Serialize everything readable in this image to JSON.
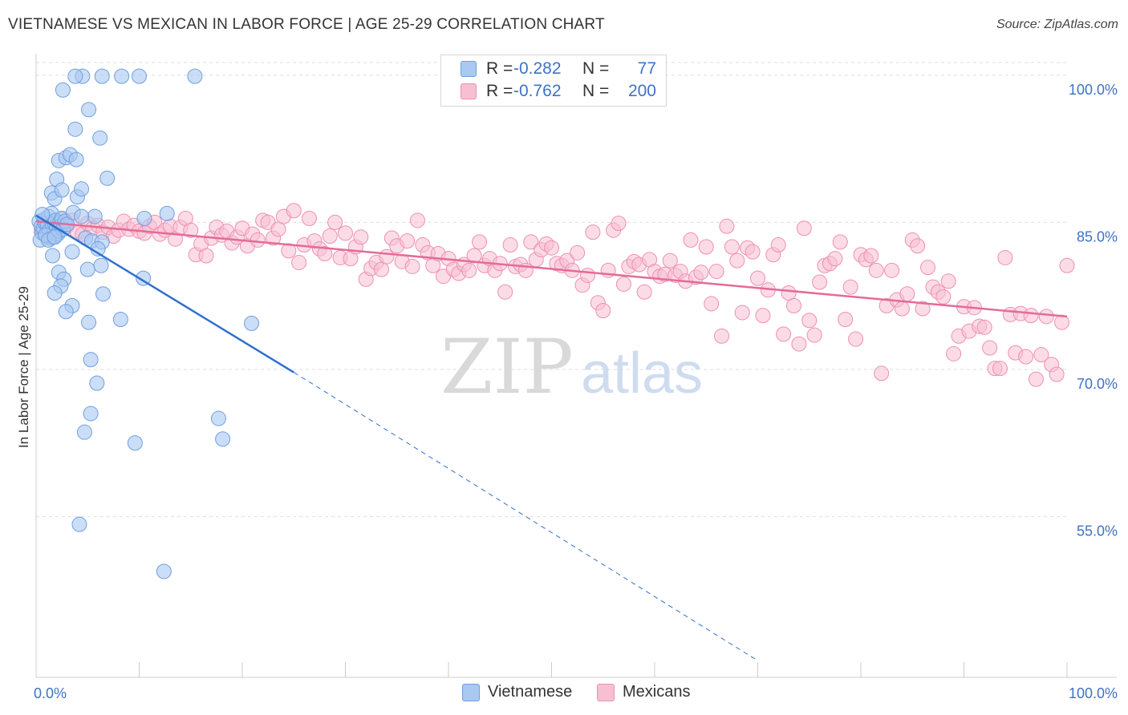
{
  "title": "VIETNAMESE VS MEXICAN IN LABOR FORCE | AGE 25-29 CORRELATION CHART",
  "source": "Source: ZipAtlas.com",
  "watermark": {
    "zip": "ZIP",
    "atlas": "atlas"
  },
  "legend": [
    {
      "r_label": "R =",
      "r_value": "-0.282",
      "n_label": "N =",
      "n_value": "77"
    },
    {
      "r_label": "R =",
      "r_value": "-0.762",
      "n_label": "N =",
      "n_value": "200"
    }
  ],
  "bottom_legend": {
    "vietnamese": "Vietnamese",
    "mexicans": "Mexicans"
  },
  "colors": {
    "viet_fill": "#a9c8f2",
    "viet_stroke": "#6f9fdf",
    "viet_line": "#2f6fd0",
    "mex_fill": "#f7bfd2",
    "mex_stroke": "#ef8fb1",
    "mex_line": "#e46b98",
    "axis_label": "#3f72c4",
    "grid": "#dddddd"
  },
  "chart_data": {
    "type": "scatter",
    "ylabel": "In Labor Force | Age 25-29",
    "xlim": [
      0,
      100
    ],
    "ylim": [
      38.6,
      102.2
    ],
    "x_tick_labels": [
      "0.0%",
      "100.0%"
    ],
    "y_ticks": [
      {
        "value": 100,
        "label": "100.0%"
      },
      {
        "value": 85,
        "label": "85.0%"
      },
      {
        "value": 70,
        "label": "70.0%"
      },
      {
        "value": 55,
        "label": "55.0%"
      }
    ],
    "grid": true,
    "series": [
      {
        "name": "Vietnamese",
        "trend": {
          "x0": 0,
          "y0": 85.7,
          "x1": 25,
          "y1": 69.7,
          "dash_x1": 70,
          "dash_y1": 40.3
        },
        "points": [
          [
            0.3,
            85.1
          ],
          [
            0.5,
            84.6
          ],
          [
            0.6,
            83.9
          ],
          [
            0.7,
            84.4
          ],
          [
            0.8,
            85.3
          ],
          [
            0.9,
            84.9
          ],
          [
            1.0,
            83.6
          ],
          [
            1.1,
            84.8
          ],
          [
            1.2,
            85.6
          ],
          [
            1.3,
            84.2
          ],
          [
            1.4,
            83.4
          ],
          [
            1.5,
            85.9
          ],
          [
            1.6,
            84.7
          ],
          [
            1.7,
            83.5
          ],
          [
            1.8,
            84.9
          ],
          [
            1.9,
            85.2
          ],
          [
            2.0,
            84.4
          ],
          [
            2.1,
            83.8
          ],
          [
            2.2,
            84.1
          ],
          [
            2.3,
            85.0
          ],
          [
            2.4,
            84.6
          ],
          [
            2.5,
            85.4
          ],
          [
            2.6,
            84.3
          ],
          [
            2.8,
            85.1
          ],
          [
            3.0,
            84.8
          ],
          [
            0.4,
            83.2
          ],
          [
            0.6,
            85.8
          ],
          [
            0.9,
            83.7
          ],
          [
            1.2,
            83.2
          ],
          [
            1.8,
            83.5
          ],
          [
            1.5,
            88.0
          ],
          [
            1.8,
            87.4
          ],
          [
            2.0,
            89.4
          ],
          [
            2.2,
            91.3
          ],
          [
            2.5,
            88.3
          ],
          [
            2.9,
            91.6
          ],
          [
            3.3,
            91.9
          ],
          [
            3.8,
            94.5
          ],
          [
            3.6,
            86.0
          ],
          [
            4.0,
            87.6
          ],
          [
            4.4,
            88.4
          ],
          [
            3.9,
            91.4
          ],
          [
            4.5,
            99.9
          ],
          [
            3.8,
            99.9
          ],
          [
            2.6,
            98.5
          ],
          [
            5.1,
            96.5
          ],
          [
            6.2,
            93.6
          ],
          [
            6.4,
            99.9
          ],
          [
            8.3,
            99.9
          ],
          [
            10.0,
            99.9
          ],
          [
            15.4,
            99.9
          ],
          [
            6.9,
            89.5
          ],
          [
            5.7,
            85.6
          ],
          [
            4.4,
            85.6
          ],
          [
            4.8,
            83.4
          ],
          [
            5.4,
            83.1
          ],
          [
            6.4,
            83.0
          ],
          [
            6.0,
            82.3
          ],
          [
            3.5,
            82.0
          ],
          [
            1.6,
            81.6
          ],
          [
            6.3,
            80.6
          ],
          [
            5.0,
            80.2
          ],
          [
            2.2,
            79.9
          ],
          [
            2.7,
            79.2
          ],
          [
            2.4,
            78.5
          ],
          [
            1.8,
            77.8
          ],
          [
            6.5,
            77.7
          ],
          [
            3.5,
            76.5
          ],
          [
            2.9,
            75.9
          ],
          [
            8.2,
            75.1
          ],
          [
            5.1,
            74.8
          ],
          [
            20.9,
            74.7
          ],
          [
            10.4,
            79.3
          ],
          [
            5.3,
            71.0
          ],
          [
            5.9,
            68.6
          ],
          [
            5.3,
            65.5
          ],
          [
            17.7,
            65.0
          ]
        ],
        "extra_points": [
          [
            4.7,
            63.6
          ],
          [
            9.6,
            62.5
          ],
          [
            18.1,
            62.9
          ],
          [
            4.2,
            54.2
          ],
          [
            12.4,
            49.4
          ],
          [
            10.5,
            85.4
          ],
          [
            12.7,
            85.9
          ]
        ]
      },
      {
        "name": "Mexicans",
        "trend": {
          "x0": 0,
          "y0": 85.1,
          "x1": 100,
          "y1": 75.4
        },
        "points": [
          [
            0.5,
            84.1
          ],
          [
            1.0,
            85.0
          ],
          [
            1.5,
            84.6
          ],
          [
            2.0,
            84.2
          ],
          [
            2.5,
            85.3
          ],
          [
            3.0,
            84.6
          ],
          [
            3.5,
            85.2
          ],
          [
            4.0,
            84.0
          ],
          [
            4.5,
            83.8
          ],
          [
            5.0,
            84.9
          ],
          [
            5.5,
            84.4
          ],
          [
            6.0,
            84.7
          ],
          [
            6.5,
            84.0
          ],
          [
            7.0,
            84.5
          ],
          [
            7.5,
            83.6
          ],
          [
            8.0,
            84.2
          ],
          [
            8.5,
            85.1
          ],
          [
            9.0,
            84.3
          ],
          [
            9.5,
            84.7
          ],
          [
            10.0,
            84.1
          ],
          [
            10.5,
            83.9
          ],
          [
            11.0,
            84.6
          ],
          [
            11.5,
            85.0
          ],
          [
            12.0,
            83.8
          ],
          [
            12.5,
            84.2
          ],
          [
            13.0,
            84.6
          ],
          [
            13.5,
            83.3
          ],
          [
            14.0,
            84.5
          ],
          [
            14.5,
            85.4
          ],
          [
            15.0,
            84.2
          ],
          [
            15.5,
            81.7
          ],
          [
            16.0,
            82.8
          ],
          [
            16.5,
            81.6
          ],
          [
            17.0,
            83.4
          ],
          [
            17.5,
            84.5
          ],
          [
            18.0,
            83.7
          ],
          [
            18.5,
            84.1
          ],
          [
            19.0,
            82.9
          ],
          [
            19.5,
            83.5
          ],
          [
            20.0,
            84.4
          ],
          [
            20.5,
            82.6
          ],
          [
            21.0,
            83.8
          ],
          [
            21.5,
            83.2
          ],
          [
            22.0,
            85.2
          ],
          [
            22.5,
            85.0
          ],
          [
            23.0,
            83.4
          ],
          [
            23.5,
            84.3
          ],
          [
            24.0,
            85.6
          ],
          [
            24.5,
            82.1
          ],
          [
            25.0,
            86.2
          ],
          [
            25.5,
            80.9
          ],
          [
            26.0,
            82.7
          ],
          [
            26.5,
            85.4
          ],
          [
            27.0,
            83.1
          ],
          [
            27.5,
            82.3
          ],
          [
            28.0,
            81.8
          ],
          [
            28.5,
            83.6
          ],
          [
            29.0,
            85.0
          ],
          [
            29.5,
            81.4
          ],
          [
            30.0,
            83.9
          ],
          [
            30.5,
            81.3
          ],
          [
            31.0,
            82.5
          ],
          [
            31.5,
            83.5
          ],
          [
            32.0,
            79.2
          ],
          [
            32.5,
            80.3
          ],
          [
            33.0,
            80.9
          ],
          [
            33.5,
            80.2
          ],
          [
            34.0,
            81.5
          ],
          [
            34.5,
            83.4
          ],
          [
            35.0,
            82.6
          ],
          [
            35.5,
            81.0
          ],
          [
            36.0,
            83.1
          ],
          [
            36.5,
            80.5
          ],
          [
            37.0,
            85.2
          ],
          [
            37.5,
            82.7
          ],
          [
            38.0,
            81.9
          ],
          [
            38.5,
            80.6
          ],
          [
            39.0,
            81.8
          ],
          [
            39.5,
            79.5
          ],
          [
            40.0,
            81.3
          ],
          [
            40.5,
            80.2
          ],
          [
            41.0,
            79.8
          ],
          [
            41.5,
            80.7
          ],
          [
            42.0,
            80.1
          ],
          [
            42.5,
            81.6
          ],
          [
            43.0,
            83.0
          ],
          [
            43.5,
            80.6
          ],
          [
            44.0,
            81.3
          ],
          [
            44.5,
            80.1
          ],
          [
            45.0,
            80.8
          ],
          [
            45.5,
            77.9
          ],
          [
            46.0,
            82.7
          ],
          [
            46.5,
            80.5
          ],
          [
            47.0,
            80.7
          ],
          [
            47.5,
            80.1
          ],
          [
            48.0,
            83.0
          ],
          [
            48.5,
            81.2
          ],
          [
            49.0,
            82.2
          ],
          [
            49.5,
            82.8
          ],
          [
            50.0,
            82.4
          ],
          [
            50.5,
            80.8
          ],
          [
            51.0,
            80.6
          ],
          [
            51.5,
            81.1
          ],
          [
            52.0,
            80.1
          ],
          [
            52.5,
            81.9
          ],
          [
            53.0,
            78.6
          ],
          [
            53.5,
            79.6
          ],
          [
            54.0,
            84.0
          ],
          [
            54.5,
            76.8
          ],
          [
            55.0,
            76.0
          ],
          [
            55.5,
            80.1
          ],
          [
            56.0,
            84.2
          ],
          [
            56.5,
            84.9
          ],
          [
            57.0,
            78.7
          ],
          [
            57.5,
            80.5
          ],
          [
            58.0,
            81.0
          ],
          [
            58.5,
            80.7
          ],
          [
            59.0,
            77.9
          ],
          [
            59.5,
            81.2
          ],
          [
            60.0,
            80.0
          ],
          [
            60.5,
            79.5
          ],
          [
            61.0,
            79.7
          ],
          [
            61.5,
            81.1
          ],
          [
            62.0,
            79.6
          ],
          [
            62.5,
            80.0
          ],
          [
            63.0,
            79.0
          ],
          [
            63.5,
            83.2
          ],
          [
            64.0,
            79.4
          ],
          [
            64.5,
            79.9
          ],
          [
            65.0,
            82.5
          ],
          [
            65.5,
            76.7
          ],
          [
            66.0,
            80.0
          ],
          [
            66.5,
            73.4
          ],
          [
            67.0,
            84.6
          ],
          [
            67.5,
            82.5
          ],
          [
            68.0,
            81.1
          ],
          [
            68.5,
            75.8
          ],
          [
            69.0,
            82.4
          ],
          [
            69.5,
            82.0
          ],
          [
            70.0,
            79.3
          ],
          [
            70.5,
            75.5
          ],
          [
            71.0,
            78.1
          ],
          [
            71.5,
            81.7
          ],
          [
            72.0,
            82.7
          ],
          [
            72.5,
            73.6
          ],
          [
            73.0,
            77.8
          ],
          [
            73.5,
            76.5
          ],
          [
            74.0,
            72.6
          ],
          [
            74.5,
            84.4
          ],
          [
            75.0,
            75.0
          ],
          [
            75.5,
            73.5
          ],
          [
            76.0,
            78.9
          ],
          [
            76.5,
            80.6
          ],
          [
            77.0,
            80.8
          ],
          [
            77.5,
            81.3
          ],
          [
            78.0,
            83.0
          ],
          [
            78.5,
            75.1
          ],
          [
            79.0,
            78.4
          ],
          [
            79.5,
            73.1
          ],
          [
            80.0,
            81.7
          ],
          [
            80.5,
            81.2
          ],
          [
            81.0,
            81.6
          ],
          [
            81.5,
            80.1
          ],
          [
            82.0,
            69.6
          ],
          [
            82.5,
            76.5
          ],
          [
            83.0,
            80.1
          ],
          [
            83.5,
            77.1
          ],
          [
            84.0,
            76.2
          ],
          [
            84.5,
            77.7
          ],
          [
            85.0,
            83.2
          ],
          [
            85.5,
            82.6
          ],
          [
            86.0,
            76.2
          ],
          [
            86.5,
            80.4
          ],
          [
            87.0,
            78.4
          ],
          [
            87.5,
            77.9
          ],
          [
            88.0,
            77.4
          ],
          [
            88.5,
            79.0
          ],
          [
            89.0,
            71.6
          ],
          [
            89.5,
            73.4
          ],
          [
            90.0,
            76.4
          ],
          [
            90.5,
            73.9
          ],
          [
            91.0,
            76.3
          ],
          [
            91.5,
            74.4
          ],
          [
            92.0,
            74.3
          ],
          [
            92.5,
            72.2
          ],
          [
            93.0,
            70.1
          ],
          [
            93.5,
            70.1
          ],
          [
            94.0,
            81.4
          ],
          [
            94.5,
            75.6
          ],
          [
            95.0,
            71.7
          ],
          [
            95.5,
            75.7
          ],
          [
            96.0,
            71.3
          ],
          [
            96.5,
            75.5
          ],
          [
            97.0,
            69.0
          ],
          [
            97.5,
            71.5
          ],
          [
            98.0,
            75.4
          ],
          [
            98.5,
            70.5
          ],
          [
            99.0,
            69.5
          ],
          [
            99.5,
            74.8
          ],
          [
            100.0,
            80.6
          ]
        ]
      }
    ]
  }
}
